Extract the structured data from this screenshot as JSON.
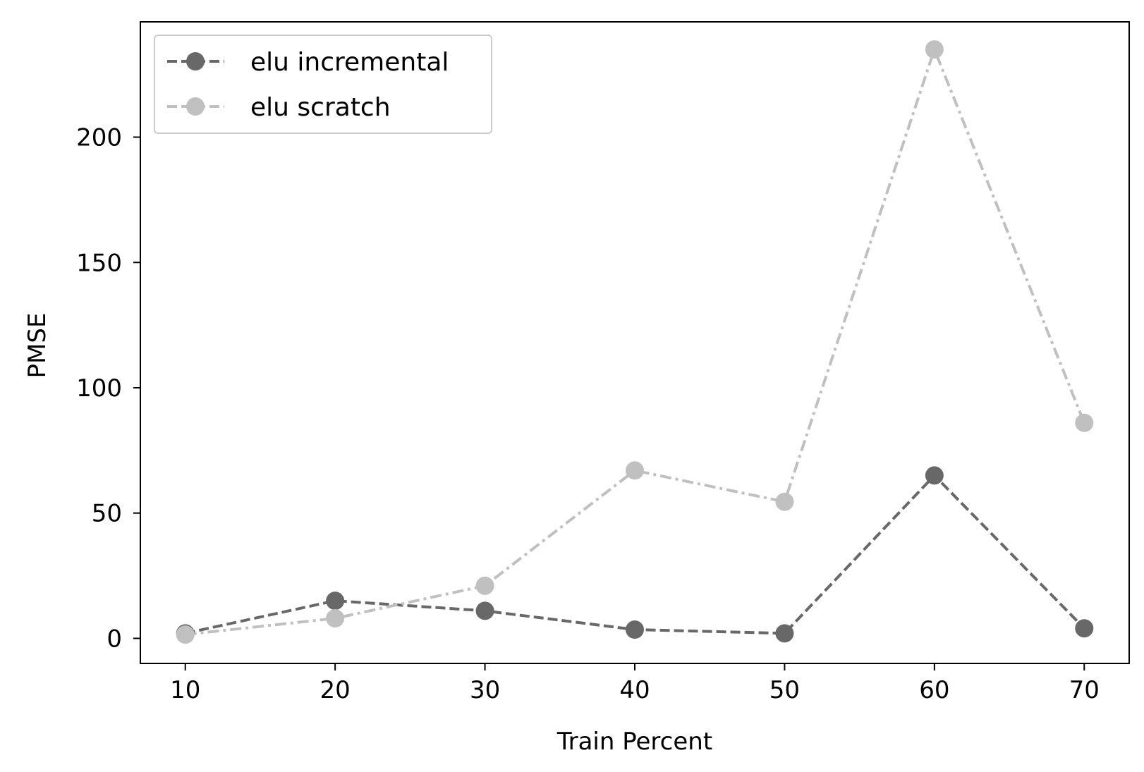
{
  "chart_data": {
    "type": "line",
    "title": "",
    "xlabel": "Train Percent",
    "ylabel": "PMSE",
    "x": [
      10,
      20,
      30,
      40,
      50,
      60,
      70
    ],
    "xlim": [
      7,
      73
    ],
    "ylim": [
      -10,
      246
    ],
    "xticks": [
      10,
      20,
      30,
      40,
      50,
      60,
      70
    ],
    "yticks": [
      0,
      50,
      100,
      150,
      200
    ],
    "grid": false,
    "legend_position": "top-left",
    "series": [
      {
        "name": "elu incremental",
        "values": [
          2,
          15,
          11,
          3.5,
          2,
          65,
          4
        ],
        "color": "#686868",
        "line_style": "dashed",
        "marker": "circle"
      },
      {
        "name": "elu scratch",
        "values": [
          1.5,
          8,
          21,
          67,
          54.5,
          235,
          86
        ],
        "color": "#c0c0c0",
        "line_style": "dash-dot",
        "marker": "circle"
      }
    ]
  }
}
